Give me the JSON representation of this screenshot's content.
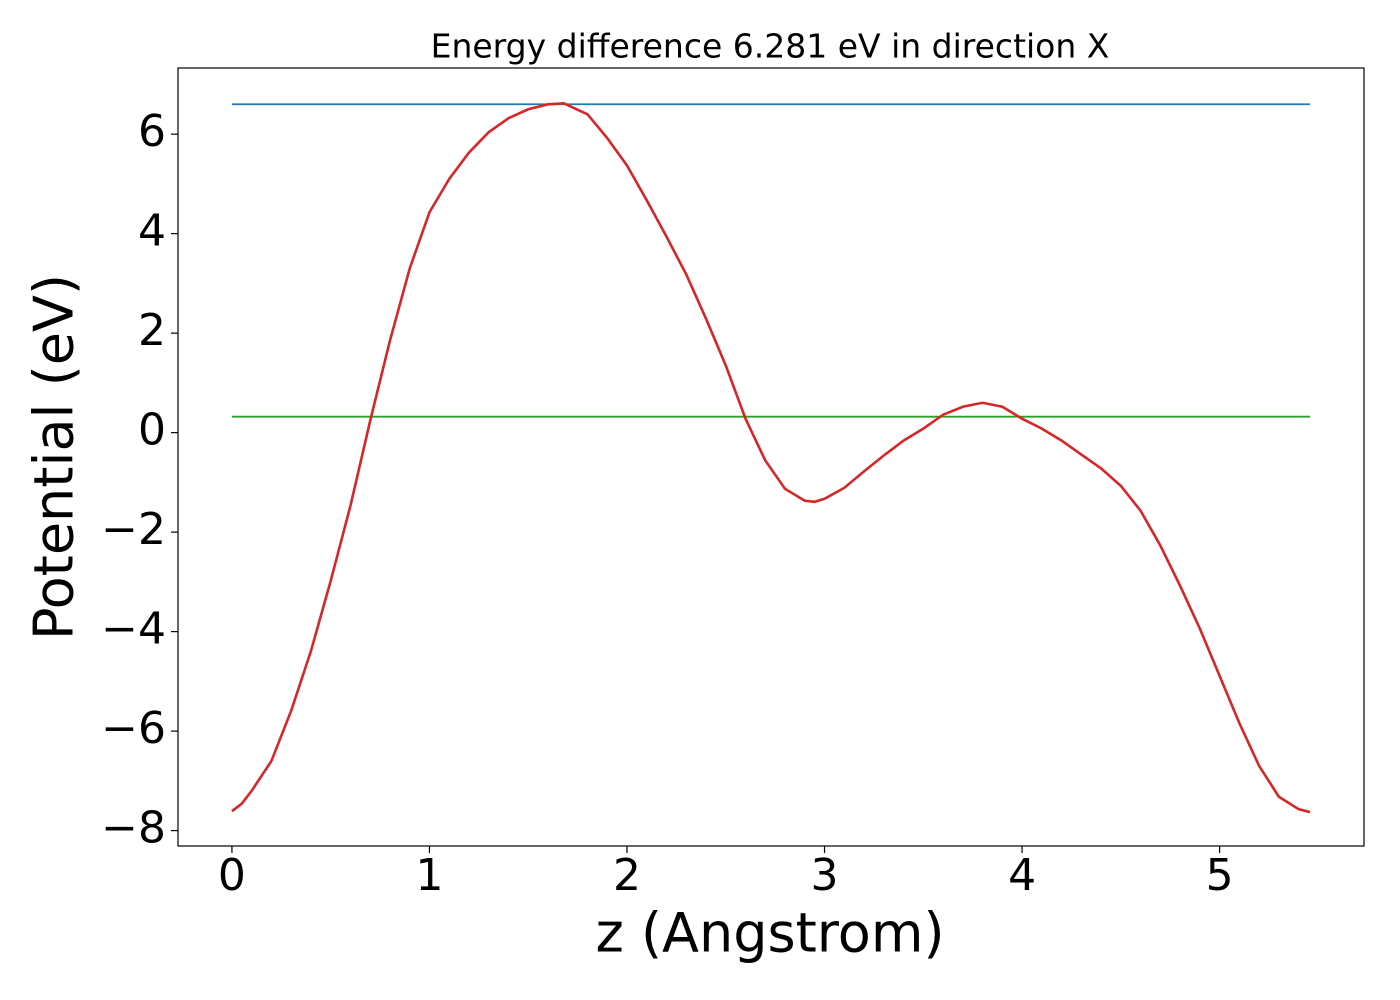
{
  "chart_data": {
    "type": "line",
    "title": "Energy difference 6.281 eV in direction X",
    "x_label": "z (Angstrom)",
    "y_label": "Potential (eV)",
    "xlim": [
      -0.273,
      5.731
    ],
    "ylim": [
      -8.31,
      7.33
    ],
    "xticks": [
      0,
      1,
      2,
      3,
      4,
      5
    ],
    "yticks": [
      -8,
      -6,
      -4,
      -2,
      0,
      2,
      4,
      6
    ],
    "series": [
      {
        "color": "#d62728",
        "x": [
          0,
          0.05,
          0.1,
          0.2,
          0.3,
          0.4,
          0.5,
          0.6,
          0.7,
          0.8,
          0.9,
          1.0,
          1.1,
          1.2,
          1.3,
          1.4,
          1.5,
          1.6,
          1.68,
          1.8,
          1.9,
          2.0,
          2.1,
          2.2,
          2.3,
          2.4,
          2.5,
          2.6,
          2.7,
          2.8,
          2.9,
          2.95,
          3.0,
          3.1,
          3.2,
          3.3,
          3.4,
          3.5,
          3.6,
          3.7,
          3.8,
          3.9,
          4.0,
          4.1,
          4.2,
          4.3,
          4.4,
          4.5,
          4.6,
          4.7,
          4.8,
          4.9,
          5.0,
          5.1,
          5.2,
          5.3,
          5.4,
          5.458
        ],
        "values": [
          -7.61,
          -7.46,
          -7.2,
          -6.6,
          -5.59,
          -4.39,
          -2.98,
          -1.47,
          0.24,
          1.85,
          3.3,
          4.43,
          5.1,
          5.63,
          6.04,
          6.32,
          6.5,
          6.6,
          6.62,
          6.4,
          5.92,
          5.37,
          4.67,
          3.94,
          3.18,
          2.29,
          1.35,
          0.28,
          -0.56,
          -1.13,
          -1.37,
          -1.39,
          -1.33,
          -1.11,
          -0.78,
          -0.46,
          -0.16,
          0.08,
          0.36,
          0.52,
          0.6,
          0.52,
          0.28,
          0.08,
          -0.16,
          -0.44,
          -0.72,
          -1.07,
          -1.57,
          -2.27,
          -3.08,
          -3.94,
          -4.89,
          -5.84,
          -6.7,
          -7.32,
          -7.57,
          -7.63
        ]
      },
      {
        "color": "#1f77b4",
        "x": [
          0,
          5.458
        ],
        "values": [
          6.601,
          6.601
        ]
      },
      {
        "color": "#2ca02c",
        "x": [
          0,
          5.458
        ],
        "values": [
          0.32,
          0.32
        ]
      }
    ]
  }
}
